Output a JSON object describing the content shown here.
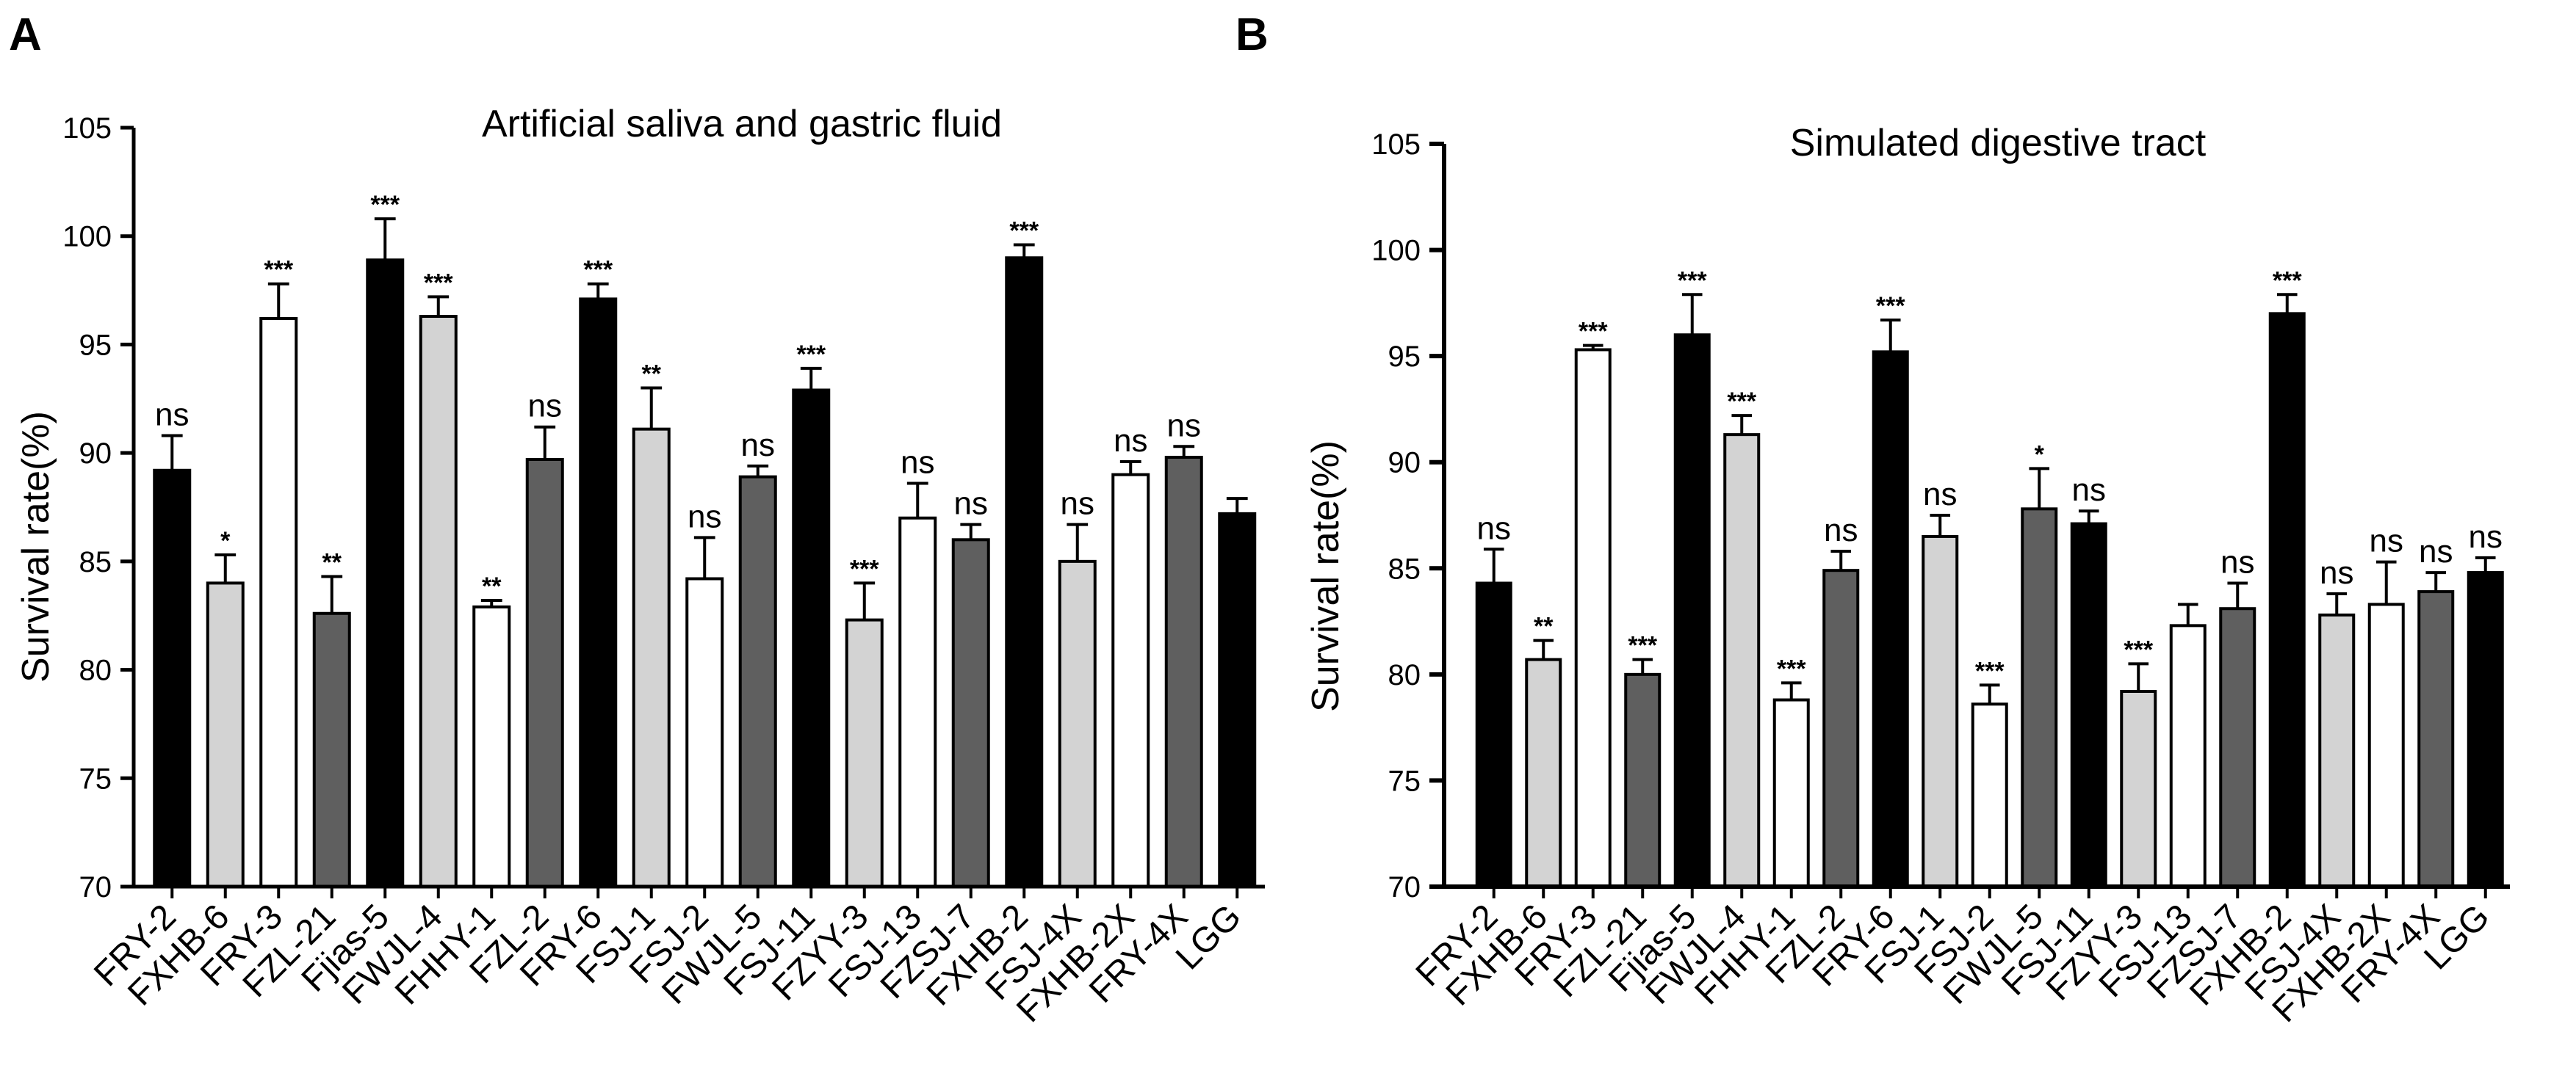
{
  "panels": [
    {
      "letter": "A"
    },
    {
      "letter": "B"
    }
  ],
  "chart_data": [
    {
      "type": "bar",
      "panel": "A",
      "title": "Artificial saliva and gastric fluid",
      "xlabel": "",
      "ylabel": "Survival rate(%)",
      "ylim": [
        70,
        105
      ],
      "yticks": [
        "70",
        "75",
        "80",
        "85",
        "90",
        "95",
        "100",
        "105"
      ],
      "categories": [
        "FRY-2",
        "FXHB-6",
        "FRY-3",
        "FZL-21",
        "Fjias-5",
        "FWJL-4",
        "FHHY-1",
        "FZL-2",
        "FRY-6",
        "FSJ-1",
        "FSJ-2",
        "FWJL-5",
        "FSJ-11",
        "FZYY-3",
        "FSJ-13",
        "FZSJ-7",
        "FXHB-2",
        "FSJ-4X",
        "FXHB-2X",
        "FRY-4X",
        "LGG"
      ],
      "values": [
        89.2,
        84.0,
        96.2,
        82.6,
        98.9,
        96.3,
        82.9,
        89.7,
        97.1,
        91.1,
        84.2,
        88.9,
        92.9,
        82.3,
        87.0,
        86.0,
        99.0,
        85.0,
        89.0,
        89.8,
        87.2
      ],
      "errors": [
        1.6,
        1.3,
        1.6,
        1.7,
        1.9,
        0.9,
        0.3,
        1.5,
        0.7,
        1.9,
        1.9,
        0.5,
        1.0,
        1.7,
        1.6,
        0.7,
        0.6,
        1.7,
        0.6,
        0.5,
        0.7
      ],
      "fills": [
        "#000000",
        "#d3d3d3",
        "#ffffff",
        "#5f5f5f",
        "#000000",
        "#d3d3d3",
        "#ffffff",
        "#5f5f5f",
        "#000000",
        "#d3d3d3",
        "#ffffff",
        "#5f5f5f",
        "#000000",
        "#d3d3d3",
        "#ffffff",
        "#5f5f5f",
        "#000000",
        "#d3d3d3",
        "#ffffff",
        "#5f5f5f",
        "#000000"
      ],
      "significance": [
        "ns",
        "*",
        "***",
        "**",
        "***",
        "***",
        "**",
        "ns",
        "***",
        "**",
        "ns",
        "ns",
        "***",
        "***",
        "ns",
        "ns",
        "***",
        "ns",
        "ns",
        "ns",
        ""
      ]
    },
    {
      "type": "bar",
      "panel": "B",
      "title": "Simulated digestive tract",
      "xlabel": "",
      "ylabel": "Survival rate(%)",
      "ylim": [
        70,
        105
      ],
      "yticks": [
        "70",
        "75",
        "80",
        "85",
        "90",
        "95",
        "100",
        "105"
      ],
      "categories": [
        "FRY-2",
        "FXHB-6",
        "FRY-3",
        "FZL-21",
        "Fjias-5",
        "FWJL-4",
        "FHHY-1",
        "FZL-2",
        "FRY-6",
        "FSJ-1",
        "FSJ-2",
        "FWJL-5",
        "FSJ-11",
        "FZYY-3",
        "FSJ-13",
        "FZSJ-7",
        "FXHB-2",
        "FSJ-4X",
        "FXHB-2X",
        "FRY-4X",
        "LGG"
      ],
      "values": [
        84.3,
        80.7,
        95.3,
        80.0,
        96.0,
        91.3,
        78.8,
        84.9,
        95.2,
        86.5,
        78.6,
        87.8,
        87.1,
        79.2,
        82.3,
        83.1,
        97.0,
        82.8,
        83.3,
        83.9,
        84.8
      ],
      "errors": [
        1.6,
        0.9,
        0.2,
        0.7,
        1.9,
        0.9,
        0.8,
        0.9,
        1.5,
        1.0,
        0.9,
        1.9,
        0.6,
        1.3,
        1.0,
        1.2,
        0.9,
        1.0,
        2.0,
        0.9,
        0.7
      ],
      "fills": [
        "#000000",
        "#d3d3d3",
        "#ffffff",
        "#5f5f5f",
        "#000000",
        "#d3d3d3",
        "#ffffff",
        "#5f5f5f",
        "#000000",
        "#d3d3d3",
        "#ffffff",
        "#5f5f5f",
        "#000000",
        "#d3d3d3",
        "#ffffff",
        "#5f5f5f",
        "#000000",
        "#d3d3d3",
        "#ffffff",
        "#5f5f5f",
        "#000000"
      ],
      "significance": [
        "ns",
        "**",
        "***",
        "***",
        "***",
        "***",
        "***",
        "ns",
        "***",
        "ns",
        "***",
        "*",
        "ns",
        "***",
        "",
        "ns",
        "***",
        "ns",
        "ns",
        "ns",
        "ns"
      ]
    }
  ]
}
